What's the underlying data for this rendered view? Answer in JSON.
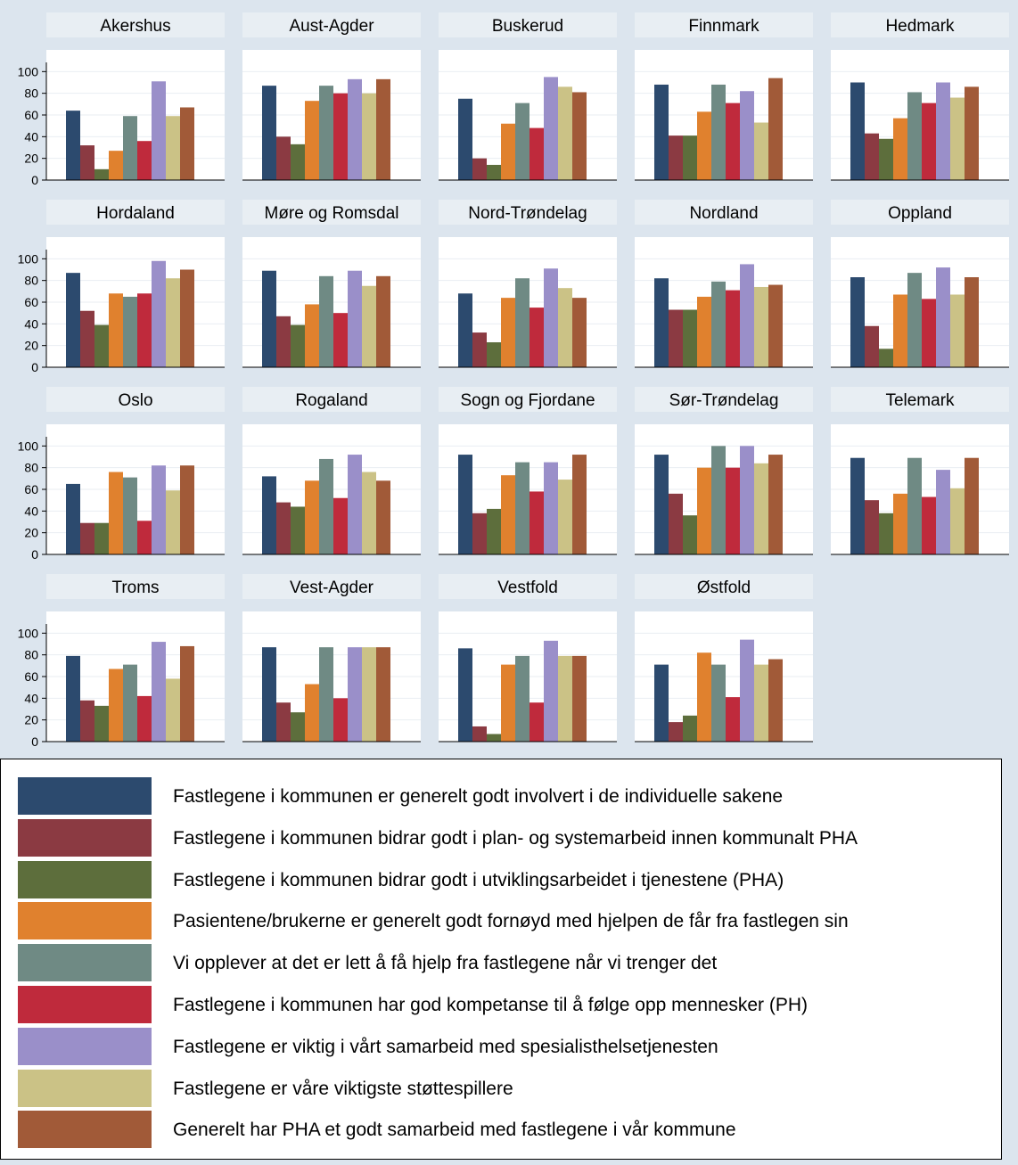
{
  "chart_data": {
    "type": "bar",
    "ylim": [
      0,
      100
    ],
    "yticks": [
      0,
      20,
      40,
      60,
      80,
      100
    ],
    "grid": true,
    "legend_position": "bottom",
    "series": [
      {
        "name": "Fastlegene i kommunen er generelt godt involvert i de individuelle sakene",
        "color": "#2c4a6e"
      },
      {
        "name": "Fastlegene i kommunen bidrar godt i plan- og systemarbeid innen kommunalt PHA",
        "color": "#8b3a42"
      },
      {
        "name": "Fastlegene i kommunen bidrar godt i utviklingsarbeidet i tjenestene (PHA)",
        "color": "#5d6e3c"
      },
      {
        "name": "Pasientene/brukerne er generelt godt fornøyd med hjelpen de får fra fastlegen sin",
        "color": "#e0812e"
      },
      {
        "name": "Vi opplever at det er lett å få hjelp fra fastlegene når vi trenger det",
        "color": "#6f8a84"
      },
      {
        "name": "Fastlegene i kommunen har god kompetanse til å følge opp mennesker (PH)",
        "color": "#bf2a3c"
      },
      {
        "name": "Fastlegene er viktig i vårt samarbeid med spesialisthelsetjenesten",
        "color": "#9a8fc9"
      },
      {
        "name": "Fastlegene er våre viktigste støttespillere",
        "color": "#cbc286"
      },
      {
        "name": "Generelt har PHA et godt samarbeid med fastlegene i vår kommune",
        "color": "#a15a38"
      }
    ],
    "panels": [
      {
        "title": "Akershus",
        "values": [
          64,
          32,
          10,
          27,
          59,
          36,
          91,
          59,
          67
        ]
      },
      {
        "title": "Aust-Agder",
        "values": [
          87,
          40,
          33,
          73,
          87,
          80,
          93,
          80,
          93
        ]
      },
      {
        "title": "Buskerud",
        "values": [
          75,
          20,
          14,
          52,
          71,
          48,
          95,
          86,
          81
        ]
      },
      {
        "title": "Finnmark",
        "values": [
          88,
          41,
          41,
          63,
          88,
          71,
          82,
          53,
          94
        ]
      },
      {
        "title": "Hedmark",
        "values": [
          90,
          43,
          38,
          57,
          81,
          71,
          90,
          76,
          86
        ]
      },
      {
        "title": "Hordaland",
        "values": [
          87,
          52,
          39,
          68,
          65,
          68,
          98,
          82,
          90
        ]
      },
      {
        "title": "Møre og Romsdal",
        "values": [
          89,
          47,
          39,
          58,
          84,
          50,
          89,
          75,
          84
        ]
      },
      {
        "title": "Nord-Trøndelag",
        "values": [
          68,
          32,
          23,
          64,
          82,
          55,
          91,
          73,
          64
        ]
      },
      {
        "title": "Nordland",
        "values": [
          82,
          53,
          53,
          65,
          79,
          71,
          95,
          74,
          76
        ]
      },
      {
        "title": "Oppland",
        "values": [
          83,
          38,
          17,
          67,
          87,
          63,
          92,
          67,
          83
        ]
      },
      {
        "title": "Oslo",
        "values": [
          65,
          29,
          29,
          76,
          71,
          31,
          82,
          59,
          82
        ]
      },
      {
        "title": "Rogaland",
        "values": [
          72,
          48,
          44,
          68,
          88,
          52,
          92,
          76,
          68
        ]
      },
      {
        "title": "Sogn og Fjordane",
        "values": [
          92,
          38,
          42,
          73,
          85,
          58,
          85,
          69,
          92
        ]
      },
      {
        "title": "Sør-Trøndelag",
        "values": [
          92,
          56,
          36,
          80,
          100,
          80,
          100,
          84,
          92
        ]
      },
      {
        "title": "Telemark",
        "values": [
          89,
          50,
          38,
          56,
          89,
          53,
          78,
          61,
          89
        ]
      },
      {
        "title": "Troms",
        "values": [
          79,
          38,
          33,
          67,
          71,
          42,
          92,
          58,
          88
        ]
      },
      {
        "title": "Vest-Agder",
        "values": [
          87,
          36,
          27,
          53,
          87,
          40,
          87,
          87,
          87
        ]
      },
      {
        "title": "Vestfold",
        "values": [
          86,
          14,
          7,
          71,
          79,
          36,
          93,
          79,
          79
        ]
      },
      {
        "title": "Østfold",
        "values": [
          71,
          18,
          24,
          82,
          71,
          41,
          94,
          71,
          76
        ]
      }
    ]
  }
}
